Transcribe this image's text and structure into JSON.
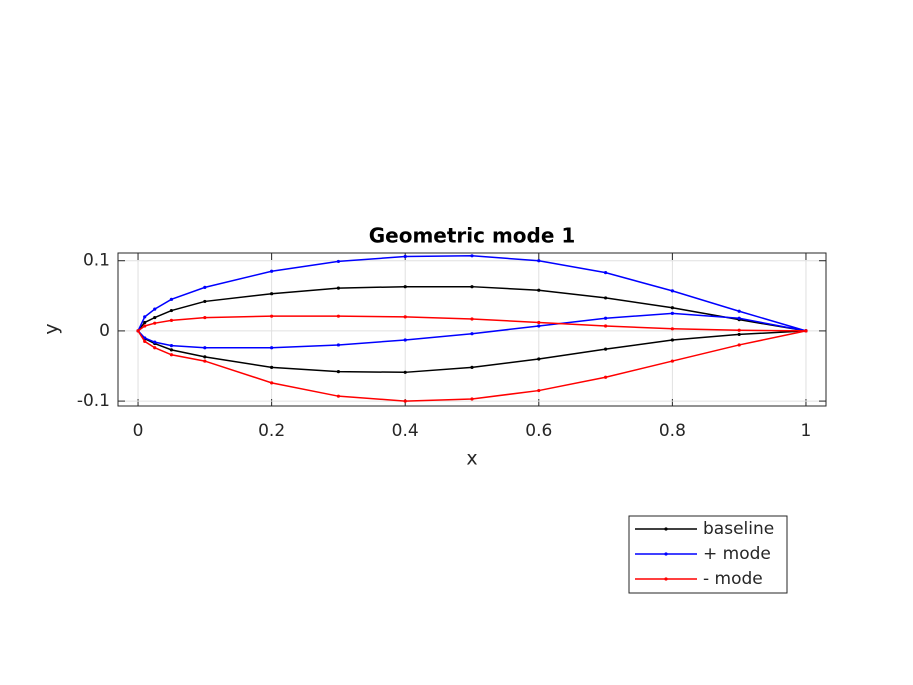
{
  "chart_data": {
    "type": "line",
    "title": "Geometric mode 1",
    "x_label": "x",
    "y_label": "y",
    "x": [
      1,
      0.9,
      0.8,
      0.7,
      0.6,
      0.5,
      0.4,
      0.3,
      0.2,
      0.1,
      0.05,
      0.025,
      0.01,
      0,
      0.01,
      0.025,
      0.05,
      0.1,
      0.2,
      0.3,
      0.4,
      0.5,
      0.6,
      0.7,
      0.8,
      0.9,
      1
    ],
    "series": [
      {
        "name": "baseline",
        "color": "#000000",
        "values": [
          0,
          0.016,
          0.033,
          0.047,
          0.058,
          0.063,
          0.063,
          0.061,
          0.053,
          0.042,
          0.029,
          0.019,
          0.012,
          0,
          -0.011,
          -0.018,
          -0.027,
          -0.037,
          -0.052,
          -0.058,
          -0.059,
          -0.052,
          -0.04,
          -0.026,
          -0.013,
          -0.005,
          0
        ]
      },
      {
        "name": "+ mode",
        "color": "#0000ff",
        "values": [
          0,
          0.028,
          0.057,
          0.083,
          0.1,
          0.107,
          0.106,
          0.099,
          0.085,
          0.062,
          0.045,
          0.031,
          0.02,
          0,
          -0.01,
          -0.016,
          -0.021,
          -0.024,
          -0.024,
          -0.02,
          -0.013,
          -0.004,
          0.007,
          0.018,
          0.025,
          0.018,
          0
        ]
      },
      {
        "name": "- mode",
        "color": "#ff0000",
        "values": [
          0,
          0.001,
          0.003,
          0.007,
          0.012,
          0.017,
          0.02,
          0.021,
          0.021,
          0.019,
          0.015,
          0.011,
          0.007,
          0,
          -0.015,
          -0.024,
          -0.034,
          -0.043,
          -0.074,
          -0.093,
          -0.1,
          -0.097,
          -0.085,
          -0.066,
          -0.043,
          -0.02,
          0
        ]
      }
    ],
    "xlim": [
      -0.03,
      1.03
    ],
    "ylim": [
      -0.107,
      0.111
    ],
    "xticks": [
      0,
      0.2,
      0.4,
      0.6,
      0.8,
      1
    ],
    "yticks": [
      -0.1,
      0,
      0.1
    ],
    "grid": true,
    "legend": "southeast"
  }
}
